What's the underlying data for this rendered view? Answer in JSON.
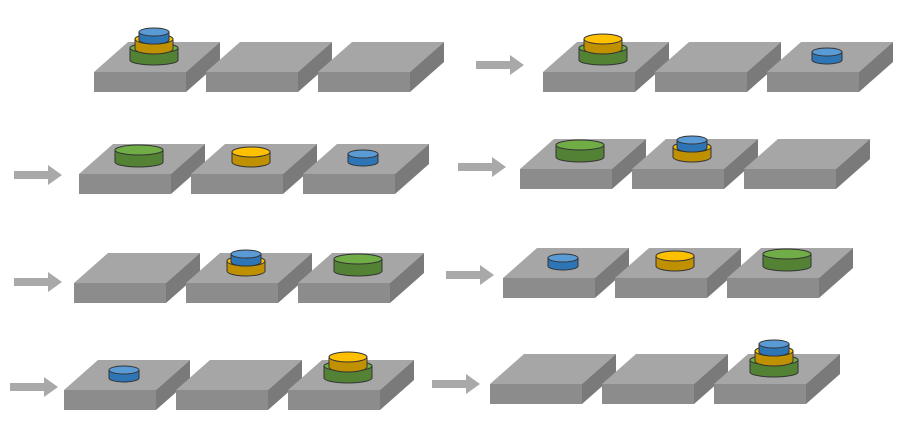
{
  "colors": {
    "peg_top": "#a6a6a6",
    "peg_front": "#8c8c8c",
    "peg_side": "#7a7a7a",
    "arrow": "#a9a9a9",
    "disk_green": "#70ad47",
    "disk_green_dark": "#548235",
    "disk_yellow": "#ffc000",
    "disk_yellow_dark": "#bf9000",
    "disk_blue": "#5b9bd5",
    "disk_blue_dark": "#2e75b6",
    "disk_outline": "#2f3f1f"
  },
  "disks": [
    {
      "id": "large",
      "color": "green"
    },
    {
      "id": "medium",
      "color": "yellow"
    },
    {
      "id": "small",
      "color": "blue"
    }
  ],
  "steps": [
    {
      "step": 1,
      "pegs": [
        [
          "large",
          "medium",
          "small"
        ],
        [],
        []
      ]
    },
    {
      "step": 2,
      "pegs": [
        [
          "large",
          "medium"
        ],
        [],
        [
          "small"
        ]
      ]
    },
    {
      "step": 3,
      "pegs": [
        [
          "large"
        ],
        [
          "medium"
        ],
        [
          "small"
        ]
      ]
    },
    {
      "step": 4,
      "pegs": [
        [
          "large"
        ],
        [
          "medium",
          "small"
        ],
        []
      ]
    },
    {
      "step": 5,
      "pegs": [
        [],
        [
          "medium",
          "small"
        ],
        [
          "large"
        ]
      ]
    },
    {
      "step": 6,
      "pegs": [
        [
          "small"
        ],
        [
          "medium"
        ],
        [
          "large"
        ]
      ]
    },
    {
      "step": 7,
      "pegs": [
        [
          "small"
        ],
        [],
        [
          "large",
          "medium"
        ]
      ]
    },
    {
      "step": 8,
      "pegs": [
        [],
        [],
        [
          "large",
          "medium",
          "small"
        ]
      ]
    }
  ]
}
